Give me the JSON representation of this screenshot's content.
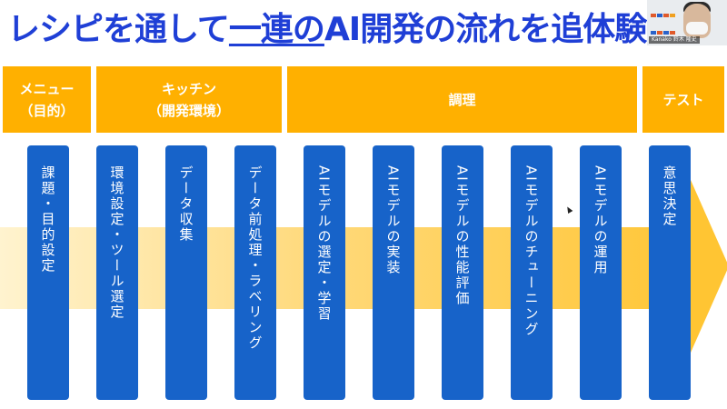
{
  "title": {
    "pre": "レシピを通して",
    "underlined": "一連の",
    "post": "AI開発の流れを追体験"
  },
  "video": {
    "label": "Kanako 鈴木 隆史"
  },
  "phases": [
    {
      "label": "メニュー\n（目的）"
    },
    {
      "label": "キッチン\n（開発環境）"
    },
    {
      "label": "調理"
    },
    {
      "label": "テスト"
    }
  ],
  "steps": [
    "課題・目的設定",
    "環境設定・ツール選定",
    "データ収集",
    "データ前処理・ラベリング",
    "AIモデルの選定・学習",
    "AIモデルの実装",
    "AIモデルの性能評価",
    "AIモデルのチューニング",
    "AIモデルの運用",
    "意思決定"
  ],
  "colors": {
    "title": "#1f3fd6",
    "phase": "#ffb000",
    "step": "#1763c9",
    "arrow": "#ffc533"
  },
  "icons": {
    "cursor": "mouse-pointer-icon"
  }
}
